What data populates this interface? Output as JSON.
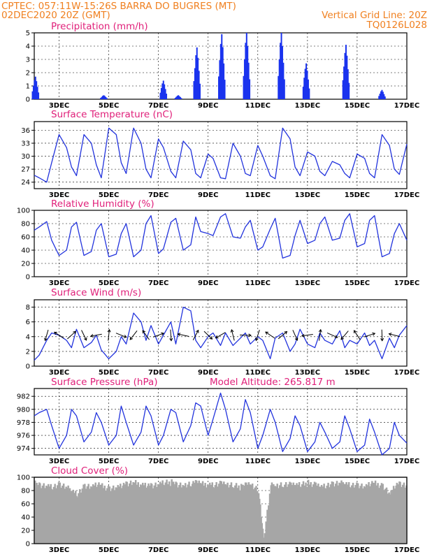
{
  "header": {
    "line1_left": "CPTEC:   057:11W-15:26S  BARRA DO BUGRES (MT)",
    "line2_left": "02DEC2020 20Z (GMT)",
    "line2_right": "Vertical Grid Line: 20Z",
    "line3_right": "TQ0126L028"
  },
  "colors": {
    "header": "#f08020",
    "panel_title": "#e0207a",
    "series_line": "#2233dd",
    "precip_bars": "#1a33ee",
    "cloud_fill": "#a6a6a6",
    "arrow": "#000000"
  },
  "chart_data": [
    {
      "type": "bar",
      "title": "Precipitation  (mm/h)",
      "xlabels": [
        "3DEC",
        "5DEC",
        "7DEC",
        "9DEC",
        "11DEC",
        "13DEC",
        "15DEC",
        "17DEC"
      ],
      "ylim": [
        0,
        5
      ],
      "yticks": [
        0,
        1,
        2,
        3,
        4,
        5
      ],
      "grid": "dashed",
      "events": [
        {
          "day": 2.05,
          "value": 1.7
        },
        {
          "day": 4.8,
          "value": 0.3
        },
        {
          "day": 7.2,
          "value": 1.4
        },
        {
          "day": 7.8,
          "value": 0.3
        },
        {
          "day": 8.55,
          "value": 3.9
        },
        {
          "day": 9.55,
          "value": 4.9
        },
        {
          "day": 10.55,
          "value": 5.0
        },
        {
          "day": 11.95,
          "value": 5.0
        },
        {
          "day": 12.95,
          "value": 2.7
        },
        {
          "day": 14.55,
          "value": 4.1
        },
        {
          "day": 16.0,
          "value": 0.7
        }
      ]
    },
    {
      "type": "line",
      "title": "Surface Temperature (nC)",
      "xlabels": [
        "3DEC",
        "5DEC",
        "7DEC",
        "9DEC",
        "11DEC",
        "13DEC",
        "15DEC",
        "17DEC"
      ],
      "ylim": [
        22.5,
        38
      ],
      "yticks": [
        24,
        27,
        30,
        33,
        36
      ],
      "grid": "dashed",
      "days": [
        2.0,
        2.2,
        2.5,
        2.7,
        3.0,
        3.3,
        3.5,
        3.7,
        4.0,
        4.3,
        4.5,
        4.7,
        5.0,
        5.3,
        5.5,
        5.7,
        6.0,
        6.3,
        6.5,
        6.7,
        7.0,
        7.2,
        7.5,
        7.7,
        8.0,
        8.3,
        8.5,
        8.7,
        9.0,
        9.2,
        9.5,
        9.7,
        10.0,
        10.3,
        10.5,
        10.7,
        11.0,
        11.2,
        11.5,
        11.7,
        12.0,
        12.3,
        12.5,
        12.7,
        13.0,
        13.3,
        13.5,
        13.7,
        14.0,
        14.3,
        14.5,
        14.7,
        15.0,
        15.3,
        15.5,
        15.7,
        16.0,
        16.3,
        16.5,
        16.7,
        17.0
      ],
      "values": [
        25.6,
        25.0,
        24.0,
        28.5,
        35.0,
        32.0,
        27.5,
        25.5,
        35.0,
        33.0,
        28.0,
        25.0,
        36.5,
        35.0,
        28.5,
        26.0,
        36.5,
        33.0,
        27.0,
        25.0,
        34.0,
        32.0,
        26.5,
        25.0,
        33.5,
        31.5,
        26.0,
        25.0,
        30.5,
        29.5,
        25.0,
        24.8,
        33.0,
        30.0,
        26.0,
        25.5,
        32.5,
        30.0,
        25.5,
        24.8,
        36.5,
        34.0,
        27.5,
        25.5,
        31.0,
        30.0,
        26.5,
        25.5,
        28.8,
        28.0,
        26.0,
        25.0,
        30.5,
        29.5,
        26.0,
        25.0,
        35.0,
        32.5,
        27.0,
        25.8,
        32.8
      ]
    },
    {
      "type": "line",
      "title": "Relative Humidity  (%)",
      "xlabels": [
        "3DEC",
        "5DEC",
        "7DEC",
        "9DEC",
        "11DEC",
        "13DEC",
        "15DEC",
        "17DEC"
      ],
      "ylim": [
        0,
        100
      ],
      "yticks": [
        0,
        20,
        40,
        60,
        80,
        100
      ],
      "grid": "dashed",
      "days": [
        2.0,
        2.2,
        2.5,
        2.7,
        3.0,
        3.3,
        3.5,
        3.7,
        4.0,
        4.3,
        4.5,
        4.7,
        5.0,
        5.3,
        5.5,
        5.7,
        6.0,
        6.3,
        6.5,
        6.7,
        7.0,
        7.2,
        7.5,
        7.7,
        8.0,
        8.3,
        8.5,
        8.7,
        9.0,
        9.2,
        9.5,
        9.7,
        10.0,
        10.3,
        10.5,
        10.7,
        11.0,
        11.2,
        11.5,
        11.7,
        12.0,
        12.3,
        12.5,
        12.7,
        13.0,
        13.3,
        13.5,
        13.7,
        14.0,
        14.3,
        14.5,
        14.7,
        15.0,
        15.3,
        15.5,
        15.7,
        16.0,
        16.3,
        16.5,
        16.7,
        17.0
      ],
      "values": [
        70,
        75,
        83,
        55,
        32,
        40,
        75,
        82,
        32,
        38,
        70,
        80,
        30,
        34,
        65,
        80,
        30,
        40,
        80,
        92,
        35,
        42,
        82,
        88,
        40,
        48,
        90,
        68,
        65,
        62,
        90,
        95,
        60,
        58,
        75,
        85,
        40,
        45,
        72,
        88,
        28,
        32,
        62,
        85,
        50,
        55,
        80,
        90,
        55,
        58,
        85,
        95,
        45,
        50,
        85,
        92,
        30,
        35,
        65,
        80,
        55
      ]
    },
    {
      "type": "line",
      "title": "Surface Wind  (m/s)",
      "xlabels": [
        "3DEC",
        "5DEC",
        "7DEC",
        "9DEC",
        "11DEC",
        "13DEC",
        "15DEC",
        "17DEC"
      ],
      "ylim": [
        0,
        9
      ],
      "yticks": [
        0,
        2,
        4,
        6,
        8
      ],
      "grid": "dashed",
      "days": [
        2.0,
        2.2,
        2.5,
        2.7,
        3.0,
        3.3,
        3.5,
        3.7,
        4.0,
        4.3,
        4.5,
        4.7,
        5.0,
        5.3,
        5.5,
        5.7,
        6.0,
        6.3,
        6.5,
        6.7,
        7.0,
        7.2,
        7.5,
        7.7,
        8.0,
        8.3,
        8.5,
        8.7,
        9.0,
        9.2,
        9.5,
        9.7,
        10.0,
        10.3,
        10.5,
        10.7,
        11.0,
        11.2,
        11.5,
        11.7,
        12.0,
        12.3,
        12.5,
        12.7,
        13.0,
        13.3,
        13.5,
        13.7,
        14.0,
        14.3,
        14.5,
        14.7,
        15.0,
        15.3,
        15.5,
        15.7,
        16.0,
        16.3,
        16.5,
        16.7,
        17.0
      ],
      "values": [
        0.8,
        1.5,
        3.5,
        4.5,
        4.2,
        3.5,
        2.5,
        5.0,
        2.5,
        3.2,
        4.2,
        2.2,
        1.0,
        2.0,
        4.0,
        3.0,
        7.2,
        6.0,
        3.5,
        5.5,
        3.0,
        4.2,
        6.0,
        3.0,
        8.0,
        7.5,
        3.5,
        2.5,
        4.0,
        4.5,
        2.8,
        4.5,
        2.8,
        3.8,
        4.5,
        3.0,
        4.0,
        3.5,
        1.0,
        3.8,
        4.5,
        2.0,
        3.0,
        5.0,
        3.0,
        2.5,
        4.5,
        3.5,
        3.0,
        4.8,
        2.5,
        3.5,
        3.0,
        4.5,
        2.8,
        3.5,
        1.0,
        3.8,
        2.5,
        4.2,
        5.5
      ]
    },
    {
      "type": "line",
      "title": "Surface Pressure (hPa)",
      "annotation": "Model Altitude: 265.817  m",
      "xlabels": [
        "3DEC",
        "5DEC",
        "7DEC",
        "9DEC",
        "11DEC",
        "13DEC",
        "15DEC",
        "17DEC"
      ],
      "ylim": [
        973,
        983.2
      ],
      "yticks": [
        974,
        976,
        978,
        980,
        982
      ],
      "grid": "dashed",
      "days": [
        2.0,
        2.2,
        2.5,
        2.7,
        3.0,
        3.3,
        3.5,
        3.7,
        4.0,
        4.3,
        4.5,
        4.7,
        5.0,
        5.3,
        5.5,
        5.7,
        6.0,
        6.3,
        6.5,
        6.7,
        7.0,
        7.2,
        7.5,
        7.7,
        8.0,
        8.3,
        8.5,
        8.7,
        9.0,
        9.2,
        9.5,
        9.7,
        10.0,
        10.3,
        10.5,
        10.7,
        11.0,
        11.2,
        11.5,
        11.7,
        12.0,
        12.3,
        12.5,
        12.7,
        13.0,
        13.3,
        13.5,
        13.7,
        14.0,
        14.3,
        14.5,
        14.7,
        15.0,
        15.3,
        15.5,
        15.7,
        16.0,
        16.3,
        16.5,
        16.7,
        17.0
      ],
      "values": [
        979.0,
        979.5,
        980.0,
        977.5,
        974.0,
        976.0,
        980.0,
        979.0,
        975.0,
        976.5,
        979.5,
        978.0,
        974.5,
        976.0,
        980.5,
        978.0,
        974.5,
        976.5,
        980.5,
        979.0,
        974.5,
        976.0,
        980.0,
        979.5,
        975.0,
        977.5,
        981.0,
        980.5,
        976.0,
        978.5,
        982.5,
        980.0,
        975.0,
        977.0,
        981.5,
        979.5,
        974.0,
        976.0,
        980.0,
        978.0,
        973.5,
        975.5,
        979.0,
        977.5,
        973.5,
        975.0,
        978.0,
        976.5,
        974.0,
        975.0,
        979.0,
        977.0,
        973.5,
        974.5,
        978.5,
        976.5,
        973.0,
        974.0,
        978.0,
        976.0,
        974.8
      ]
    },
    {
      "type": "area",
      "title": "Cloud Cover  (%)",
      "xlabels": [
        "3DEC",
        "5DEC",
        "7DEC",
        "9DEC",
        "11DEC",
        "13DEC",
        "15DEC",
        "17DEC"
      ],
      "ylim": [
        0,
        100
      ],
      "yticks": [
        0,
        20,
        40,
        60,
        80,
        100
      ],
      "grid": "dashed",
      "days": [
        2.0,
        2.2,
        2.5,
        2.7,
        3.0,
        3.3,
        3.5,
        3.7,
        4.0,
        4.3,
        4.5,
        4.7,
        5.0,
        5.3,
        5.5,
        5.7,
        6.0,
        6.3,
        6.5,
        6.7,
        7.0,
        7.2,
        7.5,
        7.7,
        8.0,
        8.3,
        8.5,
        8.7,
        9.0,
        9.2,
        9.5,
        9.7,
        10.0,
        10.3,
        10.5,
        10.7,
        11.0,
        11.2,
        11.5,
        11.7,
        12.0,
        12.3,
        12.5,
        12.7,
        13.0,
        13.3,
        13.5,
        13.7,
        14.0,
        14.3,
        14.5,
        14.7,
        15.0,
        15.3,
        15.5,
        15.7,
        16.0,
        16.3,
        16.5,
        16.7,
        17.0
      ],
      "values": [
        95,
        94,
        92,
        90,
        93,
        88,
        85,
        80,
        92,
        90,
        93,
        91,
        89,
        90,
        92,
        94,
        96,
        95,
        93,
        92,
        94,
        96,
        97,
        95,
        93,
        95,
        96,
        94,
        95,
        94,
        96,
        93,
        92,
        90,
        95,
        94,
        85,
        10,
        92,
        93,
        95,
        94,
        92,
        93,
        96,
        95,
        90,
        92,
        94,
        95,
        96,
        94,
        93,
        90,
        94,
        95,
        93,
        80,
        92,
        94,
        90
      ]
    }
  ]
}
